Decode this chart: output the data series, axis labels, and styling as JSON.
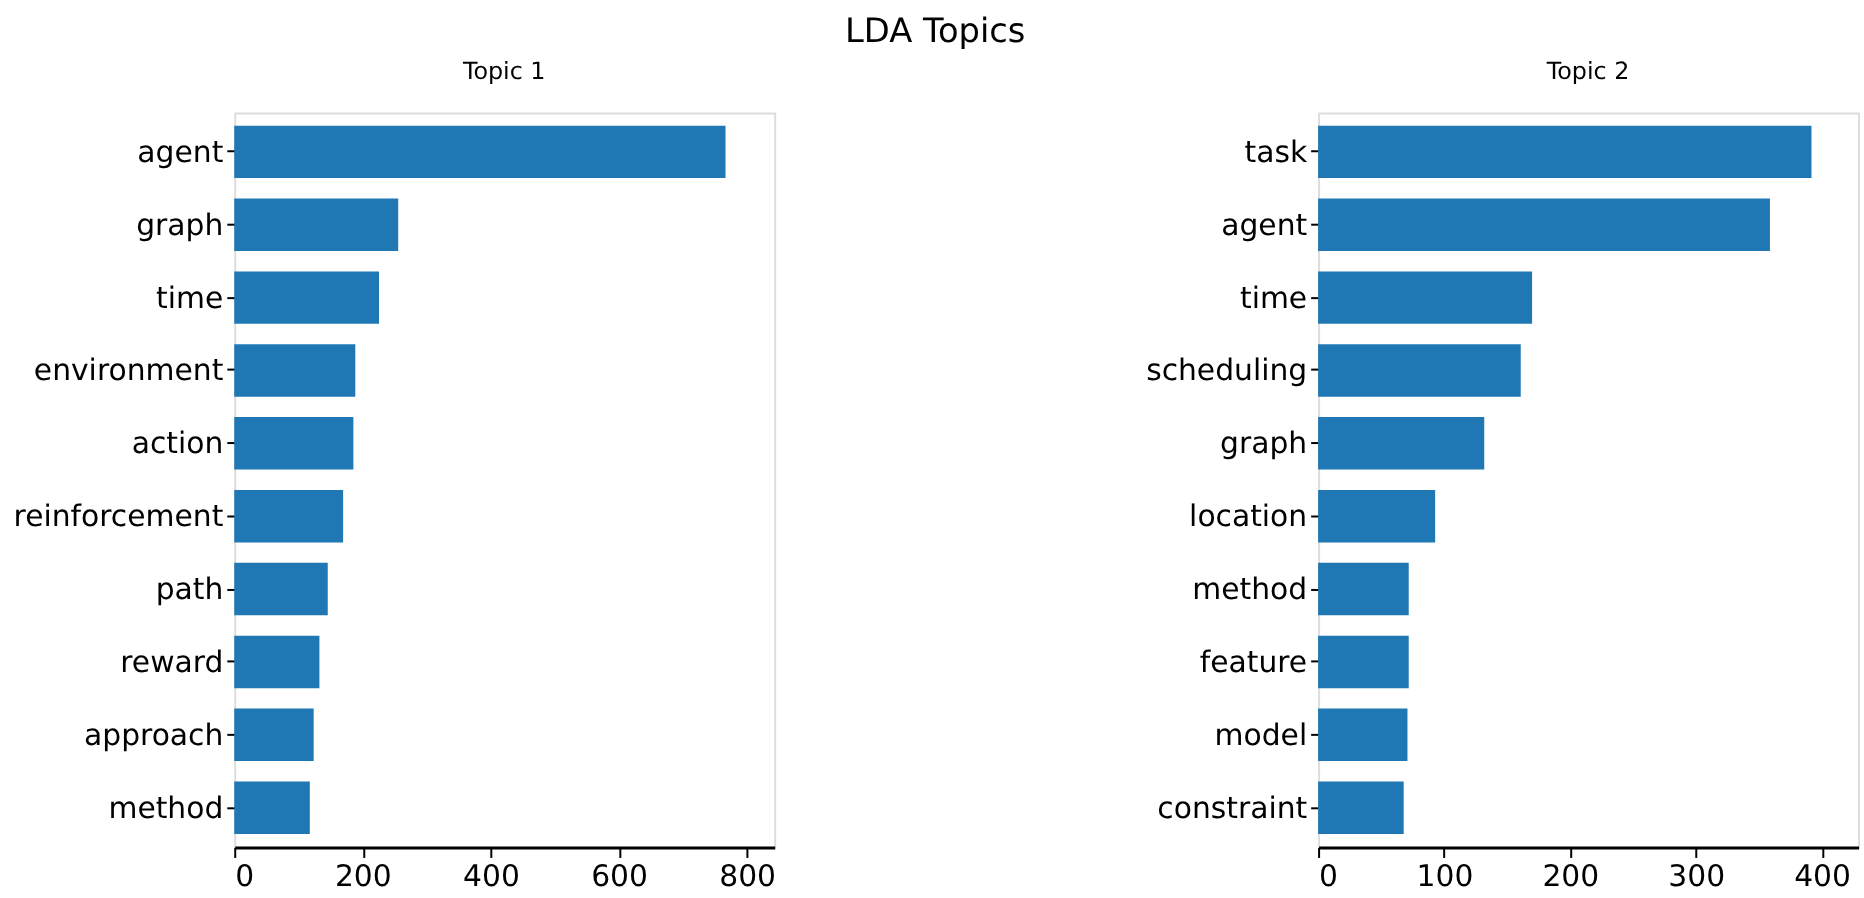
{
  "chart_data": [
    {
      "type": "other",
      "title": "LDA Topics"
    },
    {
      "type": "bar",
      "orientation": "horizontal",
      "title": "Topic 1",
      "categories": [
        "agent",
        "graph",
        "time",
        "environment",
        "action",
        "reinforcement",
        "path",
        "reward",
        "approach",
        "method"
      ],
      "series": [
        {
          "color": "#1f77b4",
          "values": [
            767,
            256,
            226,
            189,
            186,
            170,
            146,
            133,
            124,
            118
          ]
        }
      ],
      "xlim": [
        0,
        843
      ],
      "xticks": [
        0,
        200,
        400,
        600,
        800
      ],
      "grid": false
    },
    {
      "type": "bar",
      "orientation": "horizontal",
      "title": "Topic 2",
      "categories": [
        "task",
        "agent",
        "time",
        "scheduling",
        "graph",
        "location",
        "method",
        "feature",
        "model",
        "constraint"
      ],
      "series": [
        {
          "color": "#1f77b4",
          "values": [
            392,
            359,
            170,
            161,
            132,
            93,
            72,
            72,
            71,
            68
          ]
        }
      ],
      "xlim": [
        0,
        429
      ],
      "xticks": [
        0,
        100,
        200,
        300,
        400
      ],
      "grid": false
    }
  ]
}
